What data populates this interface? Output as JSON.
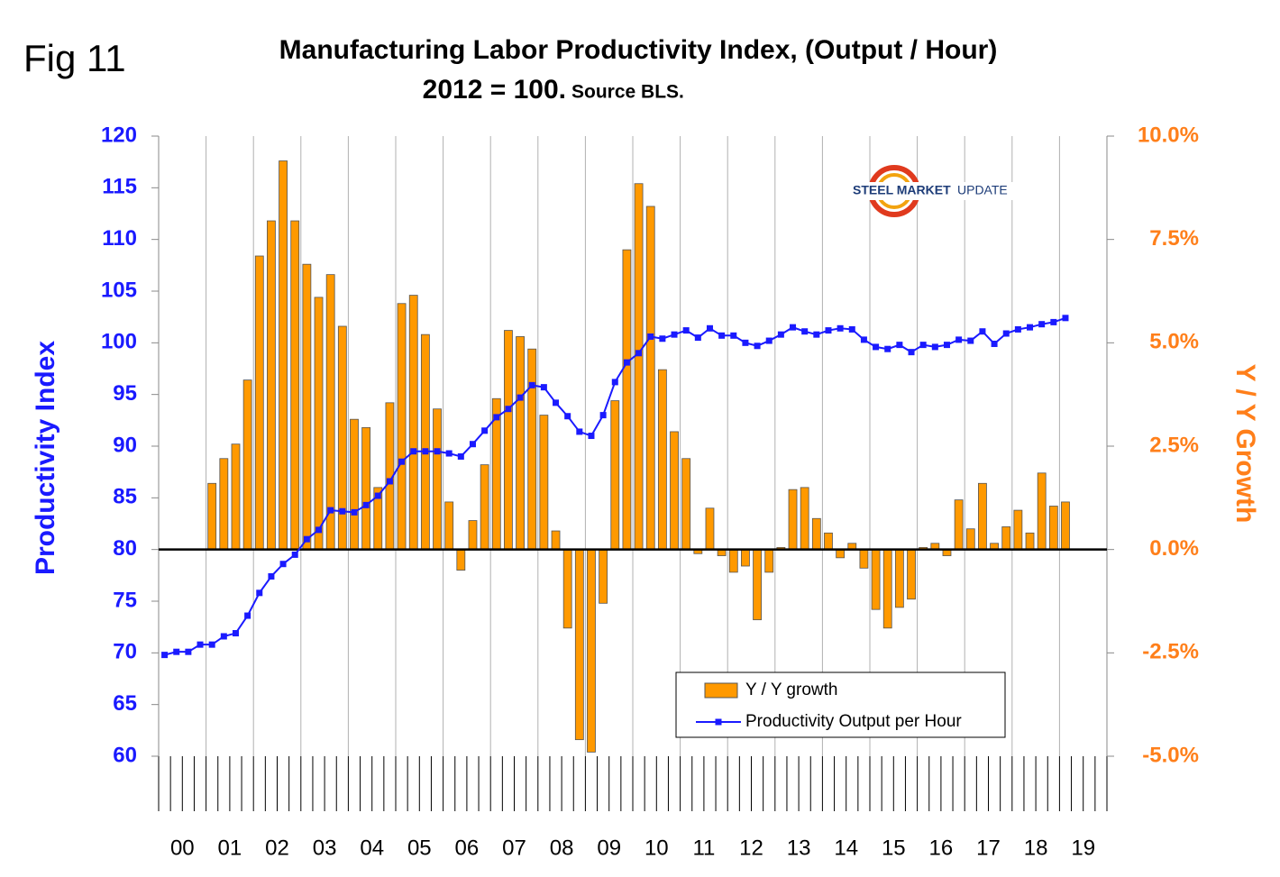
{
  "fig_label": "Fig 11",
  "chart_data": {
    "type": "bar_line",
    "title": "Manufacturing Labor Productivity Index, (Output / Hour)",
    "subtitle": "2012 = 100.",
    "source": "Source BLS.",
    "ylabel": "Productivity Index",
    "y2label": "Y / Y Growth",
    "logo": {
      "text1": "STEEL MARKET",
      "text2": "UPDATE"
    },
    "categories": [
      "00",
      null,
      null,
      null,
      "01",
      null,
      null,
      null,
      "02",
      null,
      null,
      null,
      "03",
      null,
      null,
      null,
      "04",
      null,
      null,
      null,
      "05",
      null,
      null,
      null,
      "06",
      null,
      null,
      null,
      "07",
      null,
      null,
      null,
      "08",
      null,
      null,
      null,
      "09",
      null,
      null,
      null,
      "10",
      null,
      null,
      null,
      "11",
      null,
      null,
      null,
      "12",
      null,
      null,
      null,
      "13",
      null,
      null,
      null,
      "14",
      null,
      null,
      null,
      "15",
      null,
      null,
      null,
      "16",
      null,
      null,
      null,
      "17",
      null,
      null,
      null,
      "18",
      null,
      null,
      null,
      "19",
      null,
      null,
      null
    ],
    "series": [
      {
        "name": "Y / Y growth",
        "type": "bar",
        "axis": "y2",
        "color": "#ff9900",
        "values": [
          null,
          null,
          null,
          null,
          1.6,
          2.2,
          2.55,
          4.1,
          7.1,
          7.95,
          9.4,
          7.95,
          6.9,
          6.1,
          6.65,
          5.4,
          3.15,
          2.95,
          1.5,
          3.55,
          5.95,
          6.15,
          5.2,
          3.4,
          1.15,
          -0.5,
          0.7,
          2.05,
          3.65,
          5.3,
          5.15,
          4.85,
          3.25,
          0.45,
          -1.9,
          -4.6,
          -4.9,
          -1.3,
          3.6,
          7.25,
          8.85,
          8.3,
          4.35,
          2.85,
          2.2,
          -0.1,
          1.0,
          -0.15,
          -0.55,
          -0.4,
          -1.7,
          -0.55,
          0.05,
          1.45,
          1.5,
          0.75,
          0.4,
          -0.2,
          0.15,
          -0.45,
          -1.45,
          -1.9,
          -1.4,
          -1.2,
          0.05,
          0.15,
          -0.15,
          1.2,
          0.5,
          1.6,
          0.15,
          0.55,
          0.95,
          0.4,
          1.85,
          1.05,
          1.15,
          null,
          null,
          null
        ]
      },
      {
        "name": "Productivity Output per Hour",
        "type": "line",
        "axis": "y",
        "color": "#1a1aff",
        "values": [
          69.8,
          70.1,
          70.1,
          70.8,
          70.8,
          71.6,
          71.9,
          73.6,
          75.8,
          77.4,
          78.6,
          79.5,
          81.0,
          81.9,
          83.8,
          83.7,
          83.6,
          84.3,
          85.2,
          86.6,
          88.5,
          89.5,
          89.5,
          89.5,
          89.3,
          89.0,
          90.2,
          91.5,
          92.8,
          93.6,
          94.7,
          95.9,
          95.7,
          94.2,
          92.9,
          91.4,
          91.0,
          93.0,
          96.2,
          98.1,
          99.0,
          100.6,
          100.4,
          100.8,
          101.2,
          100.5,
          101.4,
          100.7,
          100.7,
          100.0,
          99.7,
          100.2,
          100.8,
          101.5,
          101.1,
          100.8,
          101.2,
          101.4,
          101.3,
          100.3,
          99.6,
          99.4,
          99.8,
          99.1,
          99.8,
          99.6,
          99.8,
          100.3,
          100.2,
          101.1,
          99.9,
          100.9,
          101.3,
          101.5,
          101.8,
          102.0,
          102.4,
          null,
          null,
          null
        ]
      }
    ],
    "ylim": [
      60,
      120
    ],
    "yticks": [
      60,
      65,
      70,
      75,
      80,
      85,
      90,
      95,
      100,
      105,
      110,
      115,
      120
    ],
    "y2lim": [
      -5,
      10
    ],
    "y2ticks": [
      {
        "value": -5,
        "label": "-5.0%"
      },
      {
        "value": -2.5,
        "label": "-2.5%"
      },
      {
        "value": 0,
        "label": "0.0%"
      },
      {
        "value": 2.5,
        "label": "2.5%"
      },
      {
        "value": 5,
        "label": "5.0%"
      },
      {
        "value": 7.5,
        "label": "7.5%"
      },
      {
        "value": 10,
        "label": "10.0%"
      }
    ],
    "grid": "x",
    "legend": "bottom-right"
  }
}
